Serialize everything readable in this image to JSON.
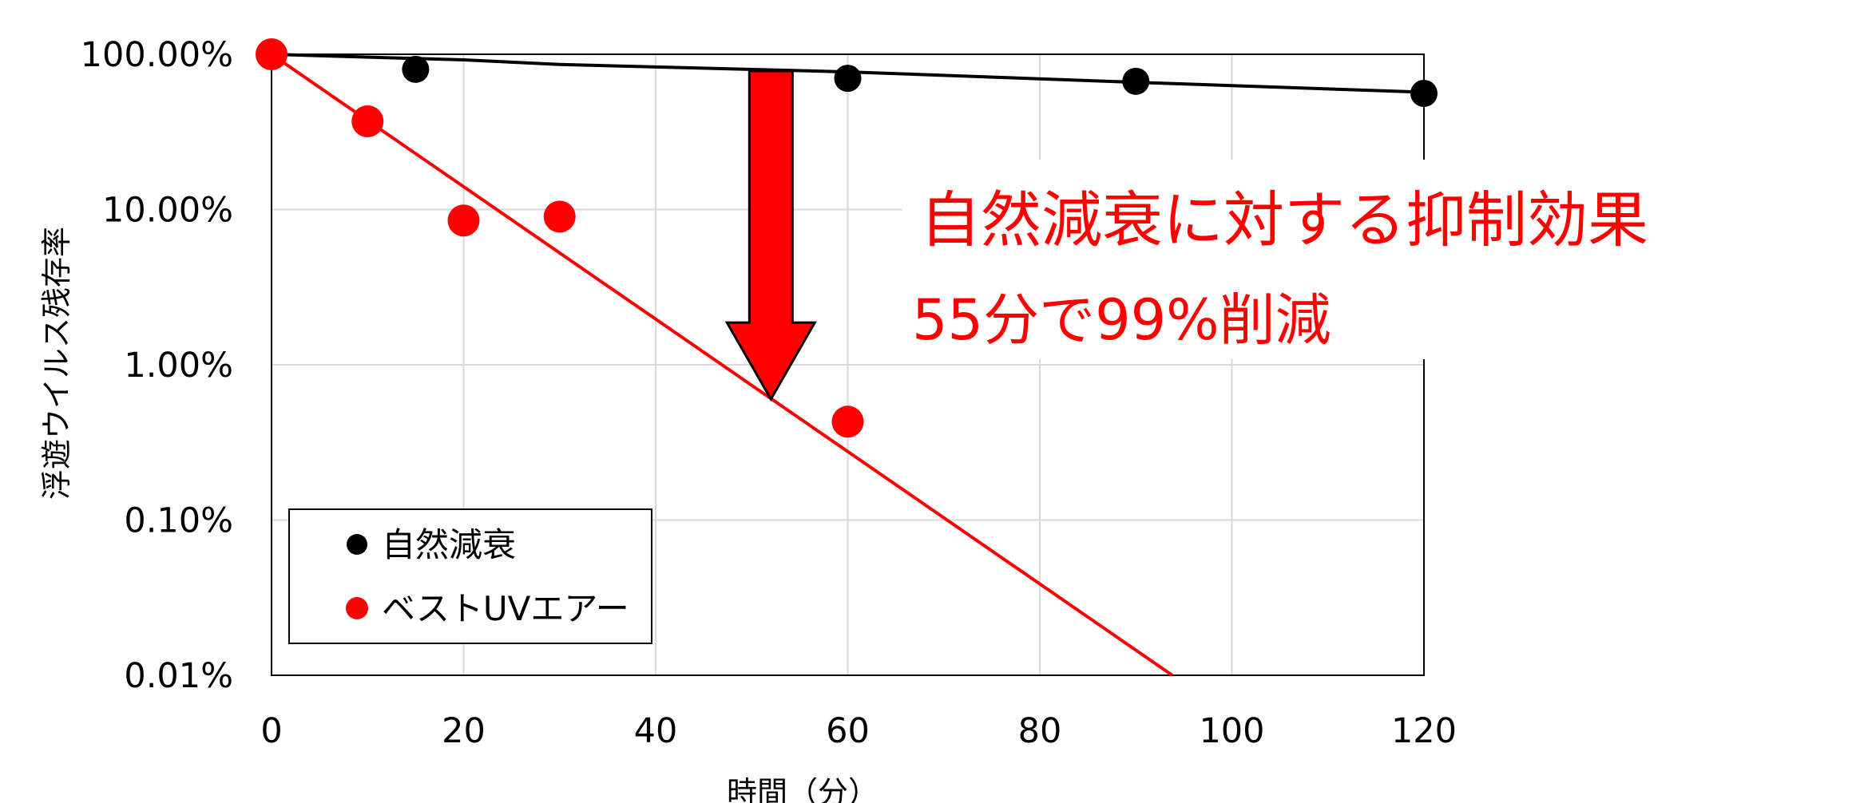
{
  "chart_data": {
    "type": "scatter",
    "xlabel": "時間（分）",
    "ylabel": "浮遊ウイルス残存率",
    "x_ticks": [
      0,
      20,
      40,
      60,
      80,
      100,
      120
    ],
    "y_scale": "log",
    "y_ticks": [
      "100.00%",
      "10.00%",
      "1.00%",
      "0.10%",
      "0.01%"
    ],
    "xlim": [
      0,
      120
    ],
    "ylim": [
      0.0001,
      1
    ],
    "grid": true,
    "legend_position": "bottom-left",
    "series": [
      {
        "name": "自然減衰",
        "color": "#000000",
        "points": [
          [
            0,
            1.0
          ],
          [
            15,
            0.8
          ],
          [
            60,
            0.7
          ],
          [
            90,
            0.67
          ],
          [
            120,
            0.56
          ]
        ],
        "trendline": [
          [
            0,
            1.0
          ],
          [
            20,
            0.92
          ],
          [
            30,
            0.86
          ],
          [
            60,
            0.77
          ],
          [
            90,
            0.66
          ],
          [
            120,
            0.57
          ]
        ]
      },
      {
        "name": "ベストUVエアー",
        "color": "#ff0000",
        "points": [
          [
            0,
            1.0
          ],
          [
            10,
            0.37
          ],
          [
            20,
            0.085
          ],
          [
            30,
            0.09
          ],
          [
            60,
            0.0043
          ]
        ],
        "trendline": [
          [
            0,
            1.0
          ],
          [
            93.8,
            0.0001
          ]
        ]
      }
    ],
    "annotations": {
      "arrow_color": "#ff0000",
      "arrow_x": 52,
      "arrow_from_y": 0.78,
      "arrow_to_y": 0.006,
      "line1": "自然減衰に対する抑制効果",
      "line2": "55分で99%削減"
    }
  }
}
